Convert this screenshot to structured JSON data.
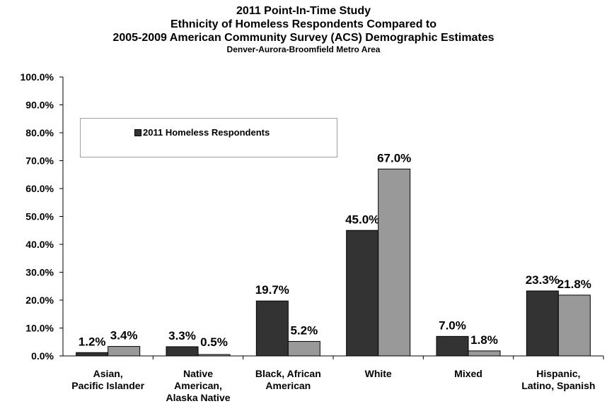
{
  "titles": {
    "line1": "2011 Point-In-Time Study",
    "line2": "Ethnicity of Homeless Respondents Compared to",
    "line3": "2005-2009 American Community Survey (ACS) Demographic Estimates",
    "line4": "Denver-Aurora-Broomfield Metro Area"
  },
  "legend": {
    "label": "2011 Homeless Respondents"
  },
  "colors": {
    "series1": "#333333",
    "series2": "#999999",
    "axis": "#000000"
  },
  "chart_data": {
    "type": "bar",
    "title": "2011 Point-In-Time Study",
    "ylim": [
      0,
      100
    ],
    "yticks": [
      "0.0%",
      "10.0%",
      "20.0%",
      "30.0%",
      "40.0%",
      "50.0%",
      "60.0%",
      "70.0%",
      "80.0%",
      "90.0%",
      "100.0%"
    ],
    "categories": [
      [
        "Asian,",
        "Pacific Islander"
      ],
      [
        "Native",
        "American,",
        "Alaska Native"
      ],
      [
        "Black, African",
        "American"
      ],
      [
        "White"
      ],
      [
        "Mixed"
      ],
      [
        "Hispanic,",
        "Latino, Spanish"
      ]
    ],
    "series": [
      {
        "name": "2011 Homeless Respondents",
        "values": [
          1.2,
          3.3,
          19.7,
          45.0,
          7.0,
          23.3
        ],
        "labels": [
          "1.2%",
          "3.3%",
          "19.7%",
          "45.0%",
          "7.0%",
          "23.3%"
        ]
      },
      {
        "values": [
          3.4,
          0.5,
          5.2,
          67.0,
          1.8,
          21.8
        ],
        "labels": [
          "3.4%",
          "0.5%",
          "5.2%",
          "67.0%",
          "1.8%",
          "21.8%"
        ]
      }
    ],
    "legend_position": "upper-left"
  }
}
